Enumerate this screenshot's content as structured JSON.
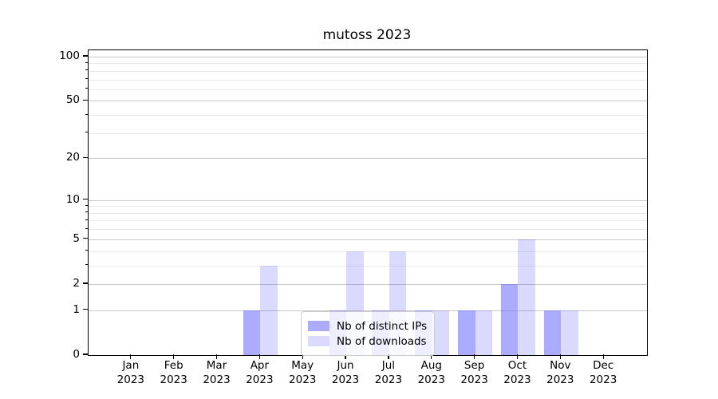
{
  "chart_data": {
    "type": "bar",
    "title": "mutoss 2023",
    "categories": [
      "Jan",
      "Feb",
      "Mar",
      "Apr",
      "May",
      "Jun",
      "Jul",
      "Aug",
      "Sep",
      "Oct",
      "Nov",
      "Dec"
    ],
    "x_tick_second_line": "2023",
    "series": [
      {
        "name": "Nb of distinct IPs",
        "values": [
          0,
          0,
          0,
          1,
          0,
          1,
          1,
          1,
          1,
          2,
          1,
          0
        ],
        "color": "rgba(102,102,255,0.55)",
        "color_on_white_hex": "#abaafa"
      },
      {
        "name": "Nb of downloads",
        "values": [
          0,
          0,
          0,
          3,
          0,
          4,
          4,
          1,
          1,
          5,
          1,
          0
        ],
        "color": "rgba(102,102,255,0.24)",
        "color_on_white_hex": "#dadafa"
      }
    ],
    "yscale": "log1p",
    "y_major_ticks": [
      0,
      1,
      2,
      5,
      10,
      20,
      50,
      100
    ],
    "y_minor_ticks": [
      3,
      4,
      6,
      7,
      8,
      9,
      30,
      40,
      60,
      70,
      80,
      90
    ],
    "ylim": [
      0,
      110
    ],
    "grid": true,
    "legend_position": "lower center"
  },
  "colors": {
    "bar_base": "#6666ff",
    "major_grid": "#c6c6c6",
    "minor_grid": "#e9e9e9",
    "axis": "#000000",
    "text": "#000000",
    "legend_border": "#cccccc",
    "legend_bg": "rgba(255,255,255,0.8)",
    "background": "#ffffff"
  }
}
